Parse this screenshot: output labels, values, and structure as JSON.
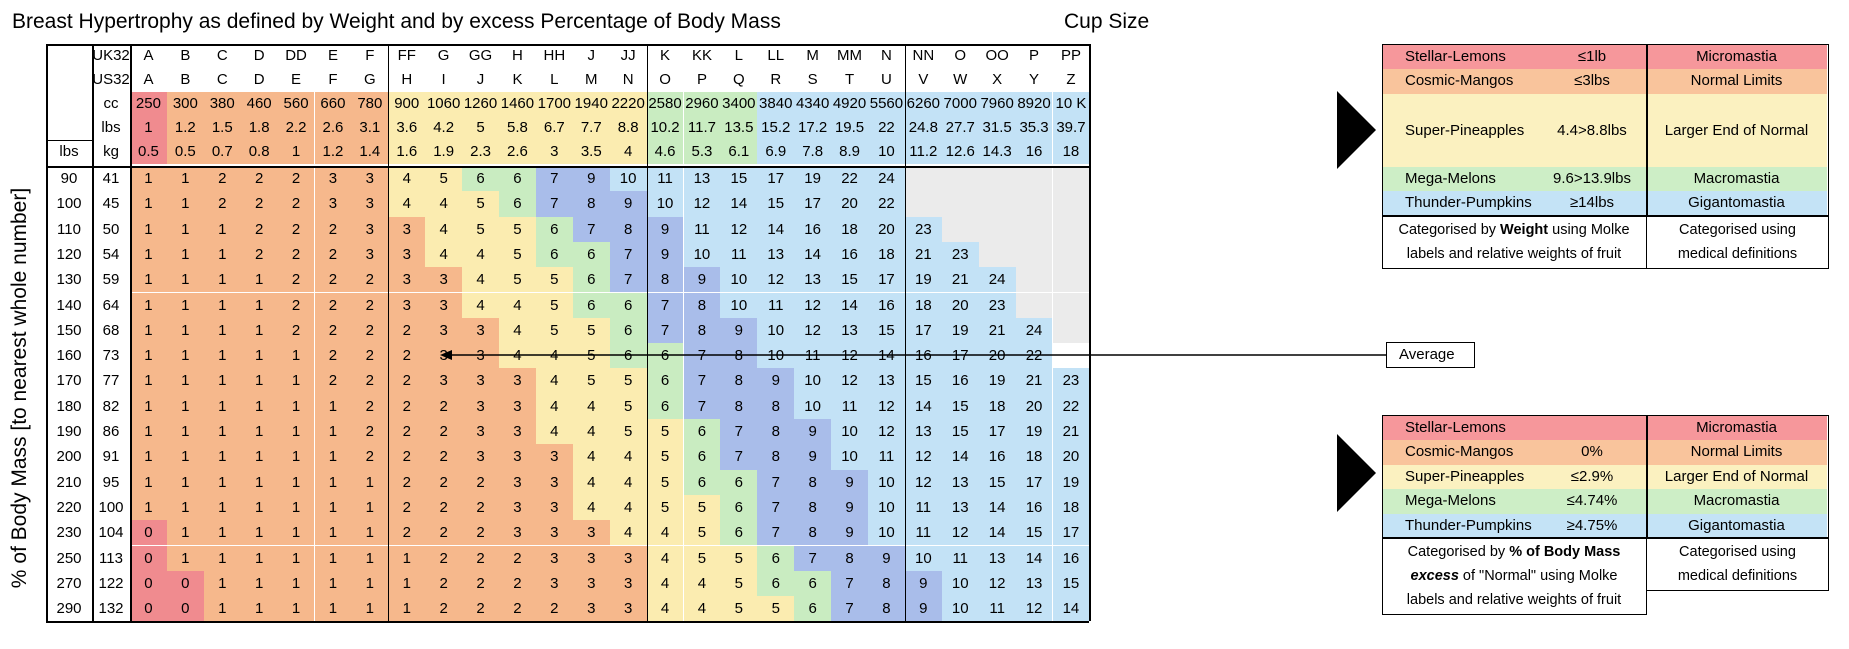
{
  "title": "Breast Hypertrophy as defined by Weight and by excess Percentage of Body Mass",
  "cup_size_label": "Cup Size",
  "y_axis_label": "% of Body Mass [to nearest whole number]",
  "row_labels": {
    "uk": "UK32",
    "us": "US32",
    "cc": "cc",
    "lbs": "lbs",
    "kg": "kg",
    "lbs_col": "lbs"
  },
  "cups_uk": [
    "A",
    "B",
    "C",
    "D",
    "DD",
    "E",
    "F",
    "FF",
    "G",
    "GG",
    "H",
    "HH",
    "J",
    "JJ",
    "K",
    "KK",
    "L",
    "LL",
    "M",
    "MM",
    "N",
    "NN",
    "O",
    "OO",
    "P",
    "PP"
  ],
  "cups_us": [
    "A",
    "B",
    "C",
    "D",
    "E",
    "F",
    "G",
    "H",
    "I",
    "J",
    "K",
    "L",
    "M",
    "N",
    "O",
    "P",
    "Q",
    "R",
    "S",
    "T",
    "U",
    "V",
    "W",
    "X",
    "Y",
    "Z"
  ],
  "cc": [
    "250",
    "300",
    "380",
    "460",
    "560",
    "660",
    "780",
    "900",
    "1060",
    "1260",
    "1460",
    "1700",
    "1940",
    "2220",
    "2580",
    "2960",
    "3400",
    "3840",
    "4340",
    "4920",
    "5560",
    "6260",
    "7000",
    "7960",
    "8920",
    "10 K"
  ],
  "lbs": [
    "1",
    "1.2",
    "1.5",
    "1.8",
    "2.2",
    "2.6",
    "3.1",
    "3.6",
    "4.2",
    "5",
    "5.8",
    "6.7",
    "7.7",
    "8.8",
    "10.2",
    "11.7",
    "13.5",
    "15.2",
    "17.2",
    "19.5",
    "22",
    "24.8",
    "27.7",
    "31.5",
    "35.3",
    "39.7"
  ],
  "kg": [
    "0.5",
    "0.5",
    "0.7",
    "0.8",
    "1",
    "1.2",
    "1.4",
    "1.6",
    "1.9",
    "2.3",
    "2.6",
    "3",
    "3.5",
    "4",
    "4.6",
    "5.3",
    "6.1",
    "6.9",
    "7.8",
    "8.9",
    "10",
    "11.2",
    "12.6",
    "14.3",
    "16",
    "18"
  ],
  "rows": [
    {
      "lbs": "90",
      "kg": "41",
      "v": [
        "1",
        "1",
        "2",
        "2",
        "2",
        "3",
        "3",
        "4",
        "5",
        "6",
        "6",
        "7",
        "9",
        "10",
        "11",
        "13",
        "15",
        "17",
        "19",
        "22",
        "24",
        "",
        "",
        "",
        "",
        ""
      ]
    },
    {
      "lbs": "100",
      "kg": "45",
      "v": [
        "1",
        "1",
        "2",
        "2",
        "2",
        "3",
        "3",
        "4",
        "4",
        "5",
        "6",
        "7",
        "8",
        "9",
        "10",
        "12",
        "14",
        "15",
        "17",
        "20",
        "22",
        "",
        "",
        "",
        "",
        ""
      ]
    },
    {
      "lbs": "110",
      "kg": "50",
      "v": [
        "1",
        "1",
        "1",
        "2",
        "2",
        "2",
        "3",
        "3",
        "4",
        "5",
        "5",
        "6",
        "7",
        "8",
        "9",
        "11",
        "12",
        "14",
        "16",
        "18",
        "20",
        "23",
        "",
        "",
        "",
        ""
      ]
    },
    {
      "lbs": "120",
      "kg": "54",
      "v": [
        "1",
        "1",
        "1",
        "2",
        "2",
        "2",
        "3",
        "3",
        "4",
        "4",
        "5",
        "6",
        "6",
        "7",
        "9",
        "10",
        "11",
        "13",
        "14",
        "16",
        "18",
        "21",
        "23",
        "",
        "",
        ""
      ]
    },
    {
      "lbs": "130",
      "kg": "59",
      "v": [
        "1",
        "1",
        "1",
        "1",
        "2",
        "2",
        "2",
        "3",
        "3",
        "4",
        "5",
        "5",
        "6",
        "7",
        "8",
        "9",
        "10",
        "12",
        "13",
        "15",
        "17",
        "19",
        "21",
        "24",
        "",
        ""
      ]
    },
    {
      "lbs": "140",
      "kg": "64",
      "v": [
        "1",
        "1",
        "1",
        "1",
        "2",
        "2",
        "2",
        "3",
        "3",
        "4",
        "4",
        "5",
        "6",
        "6",
        "7",
        "8",
        "10",
        "11",
        "12",
        "14",
        "16",
        "18",
        "20",
        "23",
        "",
        ""
      ]
    },
    {
      "lbs": "150",
      "kg": "68",
      "v": [
        "1",
        "1",
        "1",
        "1",
        "2",
        "2",
        "2",
        "2",
        "3",
        "3",
        "4",
        "5",
        "5",
        "6",
        "7",
        "8",
        "9",
        "10",
        "12",
        "13",
        "15",
        "17",
        "19",
        "21",
        "24",
        ""
      ]
    },
    {
      "lbs": "160",
      "kg": "73",
      "v": [
        "1",
        "1",
        "1",
        "1",
        "1",
        "2",
        "2",
        "2",
        "3",
        "3",
        "4",
        "4",
        "5",
        "6",
        "6",
        "7",
        "8",
        "10",
        "11",
        "12",
        "14",
        "16",
        "17",
        "20",
        "22",
        ""
      ]
    },
    {
      "lbs": "170",
      "kg": "77",
      "v": [
        "1",
        "1",
        "1",
        "1",
        "1",
        "2",
        "2",
        "2",
        "3",
        "3",
        "3",
        "4",
        "5",
        "5",
        "6",
        "7",
        "8",
        "9",
        "10",
        "12",
        "13",
        "15",
        "16",
        "19",
        "21",
        "23"
      ]
    },
    {
      "lbs": "180",
      "kg": "82",
      "v": [
        "1",
        "1",
        "1",
        "1",
        "1",
        "1",
        "2",
        "2",
        "2",
        "3",
        "3",
        "4",
        "4",
        "5",
        "6",
        "7",
        "8",
        "8",
        "10",
        "11",
        "12",
        "14",
        "15",
        "18",
        "20",
        "22"
      ]
    },
    {
      "lbs": "190",
      "kg": "86",
      "v": [
        "1",
        "1",
        "1",
        "1",
        "1",
        "1",
        "2",
        "2",
        "2",
        "3",
        "3",
        "4",
        "4",
        "5",
        "5",
        "6",
        "7",
        "8",
        "9",
        "10",
        "12",
        "13",
        "15",
        "17",
        "19",
        "21"
      ]
    },
    {
      "lbs": "200",
      "kg": "91",
      "v": [
        "1",
        "1",
        "1",
        "1",
        "1",
        "1",
        "2",
        "2",
        "2",
        "3",
        "3",
        "3",
        "4",
        "4",
        "5",
        "6",
        "7",
        "8",
        "9",
        "10",
        "11",
        "12",
        "14",
        "16",
        "18",
        "20"
      ]
    },
    {
      "lbs": "210",
      "kg": "95",
      "v": [
        "1",
        "1",
        "1",
        "1",
        "1",
        "1",
        "1",
        "2",
        "2",
        "2",
        "3",
        "3",
        "4",
        "4",
        "5",
        "6",
        "6",
        "7",
        "8",
        "9",
        "10",
        "12",
        "13",
        "15",
        "17",
        "19"
      ]
    },
    {
      "lbs": "220",
      "kg": "100",
      "v": [
        "1",
        "1",
        "1",
        "1",
        "1",
        "1",
        "1",
        "2",
        "2",
        "2",
        "3",
        "3",
        "4",
        "4",
        "5",
        "5",
        "6",
        "7",
        "8",
        "9",
        "10",
        "11",
        "13",
        "14",
        "16",
        "18"
      ]
    },
    {
      "lbs": "230",
      "kg": "104",
      "v": [
        "0",
        "1",
        "1",
        "1",
        "1",
        "1",
        "1",
        "2",
        "2",
        "2",
        "3",
        "3",
        "3",
        "4",
        "4",
        "5",
        "6",
        "7",
        "8",
        "9",
        "10",
        "11",
        "12",
        "14",
        "15",
        "17"
      ]
    },
    {
      "lbs": "250",
      "kg": "113",
      "v": [
        "0",
        "1",
        "1",
        "1",
        "1",
        "1",
        "1",
        "1",
        "2",
        "2",
        "2",
        "3",
        "3",
        "3",
        "4",
        "5",
        "5",
        "6",
        "7",
        "8",
        "9",
        "10",
        "11",
        "13",
        "14",
        "16"
      ]
    },
    {
      "lbs": "270",
      "kg": "122",
      "v": [
        "0",
        "0",
        "1",
        "1",
        "1",
        "1",
        "1",
        "1",
        "2",
        "2",
        "2",
        "3",
        "3",
        "3",
        "4",
        "4",
        "5",
        "6",
        "6",
        "7",
        "8",
        "9",
        "10",
        "12",
        "13",
        "15"
      ]
    },
    {
      "lbs": "290",
      "kg": "132",
      "v": [
        "0",
        "0",
        "1",
        "1",
        "1",
        "1",
        "1",
        "1",
        "2",
        "2",
        "2",
        "2",
        "3",
        "3",
        "4",
        "4",
        "5",
        "5",
        "6",
        "7",
        "8",
        "9",
        "10",
        "11",
        "12",
        "14"
      ]
    }
  ],
  "average_label": "Average",
  "legend_weight": {
    "items": [
      {
        "label": "Stellar-Lemons",
        "range": "≤1lb",
        "medical": "Micromastia",
        "color": "#f6979b"
      },
      {
        "label": "Cosmic-Mangos",
        "range": "≤3lbs",
        "medical": "Normal Limits",
        "color": "#f9c49c"
      },
      {
        "label": "Super-Pineapples",
        "range": "4.4>8.8lbs",
        "medical": "Larger End of Normal",
        "color": "#fbf1c0"
      },
      {
        "label": "Mega-Melons",
        "range": "9.6>13.9lbs",
        "medical": "Macromastia",
        "color": "#cdeec6"
      },
      {
        "label": "Thunder-Pumpkins",
        "range": "≥14lbs",
        "medical": "Gigantomastia",
        "color": "#c4e3f6"
      }
    ],
    "caption_pre": "Categorised by ",
    "caption_bold": "Weight",
    "caption_post": " using Molke",
    "caption_line2": "labels and relative weights of fruit",
    "med_line1": "Categorised using",
    "med_line2": "medical definitions"
  },
  "legend_percent": {
    "items": [
      {
        "label": "Stellar-Lemons",
        "range": "",
        "medical": "Micromastia",
        "color": "#f6979b"
      },
      {
        "label": "Cosmic-Mangos",
        "range": "0%",
        "medical": "Normal Limits",
        "color": "#f9c49c"
      },
      {
        "label": "Super-Pineapples",
        "range": "≤2.9%",
        "medical": "Larger End of Normal",
        "color": "#fbf1c0"
      },
      {
        "label": "Mega-Melons",
        "range": "≤4.74%",
        "medical": "Macromastia",
        "color": "#cdeec6"
      },
      {
        "label": "Thunder-Pumpkins",
        "range": "≥4.75%",
        "medical": "Gigantomastia",
        "color": "#c4e3f6"
      }
    ],
    "caption_pre": "Categorised by ",
    "caption_bold": "% of Body Mass",
    "caption_line2_bold": "excess",
    "caption_line2_post": " of \"Normal\" using Molke",
    "caption_line3": "labels and relative weights of fruit",
    "med_line1": "Categorised using",
    "med_line2": "medical definitions"
  },
  "colors": {
    "red": "#f08b8f",
    "orange": "#f6b88c",
    "peach": "#f9d7ad",
    "yellow": "#fbecb0",
    "green": "#c9ecc1",
    "blue": "#a9bdea",
    "lightblue": "#c3e2f6",
    "gray": "#ebebeb"
  }
}
